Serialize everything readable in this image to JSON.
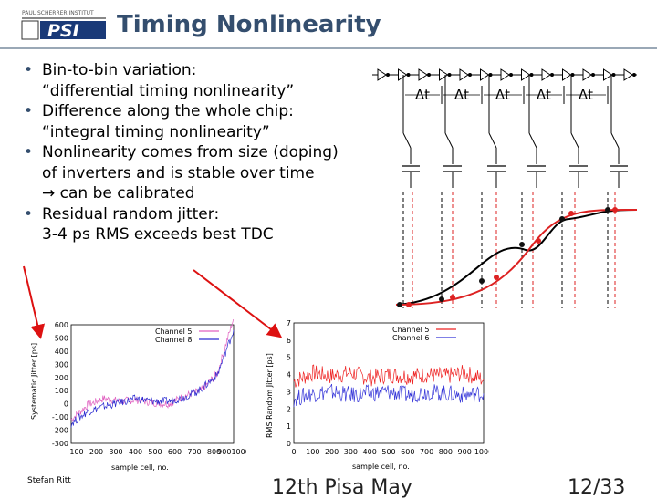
{
  "slide": {
    "logo_text": "PAUL SCHERRER INSTITUT",
    "logo_mark": "PSI",
    "title": "Timing Nonlinearity"
  },
  "bullets": [
    {
      "line1": "Bin-to-bin variation:",
      "line2": "“differential timing nonlinearity”"
    },
    {
      "line1": "Difference along the whole chip:",
      "line2": "“integral timing nonlinearity”"
    },
    {
      "line1": "Nonlinearity comes from size (doping)",
      "line2": "of inverters and is stable over time",
      "line3": "→ can be calibrated"
    },
    {
      "line1": "Residual random jitter:",
      "line2": "3-4 ps RMS exceeds best TDC"
    }
  ],
  "schematic": {
    "delay_labels": [
      "Δt",
      "Δt",
      "Δt",
      "Δt",
      "Δt"
    ],
    "colors": {
      "black_curve": "#000000",
      "red_curve": "#dd2222"
    }
  },
  "chart_data": [
    {
      "type": "line",
      "title": "",
      "xlabel": "sample cell, no.",
      "ylabel": "Systematic Jitter [ps]",
      "xlim": [
        0,
        1000
      ],
      "ylim": [
        -300,
        600
      ],
      "xticks": [
        "100",
        "200",
        "300",
        "400",
        "500",
        "600",
        "700",
        "800",
        "9001000"
      ],
      "yticks": [
        "600",
        "500",
        "400",
        "300",
        "200",
        "100",
        "0",
        "-100",
        "-200",
        "-300"
      ],
      "series": [
        {
          "name": "Channel 5",
          "color": "#e060c0",
          "x": [
            0,
            100,
            200,
            300,
            400,
            500,
            600,
            700,
            800,
            900,
            1000
          ],
          "y": [
            -120,
            -10,
            40,
            20,
            30,
            10,
            0,
            60,
            100,
            230,
            650
          ]
        },
        {
          "name": "Channel 8",
          "color": "#2a2ad0",
          "x": [
            0,
            100,
            200,
            300,
            400,
            500,
            600,
            700,
            800,
            900,
            1000
          ],
          "y": [
            -150,
            -60,
            -20,
            10,
            40,
            20,
            20,
            50,
            110,
            220,
            560
          ]
        }
      ]
    },
    {
      "type": "line",
      "title": "",
      "xlabel": "sample cell, no.",
      "ylabel": "RMS Random Jitter [ps]",
      "xlim": [
        0,
        1000
      ],
      "ylim": [
        0,
        7
      ],
      "xticks": [
        "0",
        "100",
        "200",
        "300",
        "400",
        "500",
        "600",
        "700",
        "800",
        "900",
        "1000"
      ],
      "yticks": [
        "7",
        "6",
        "5",
        "4",
        "3",
        "2",
        "1",
        "0"
      ],
      "series": [
        {
          "name": "Channel 5",
          "color": "#ee2222",
          "x": [
            0,
            100,
            200,
            300,
            400,
            500,
            600,
            700,
            800,
            900,
            1000
          ],
          "y": [
            3.6,
            4.1,
            3.9,
            4.1,
            3.8,
            4.0,
            3.9,
            4.0,
            3.9,
            4.1,
            3.7
          ]
        },
        {
          "name": "Channel 6",
          "color": "#3434d8",
          "x": [
            0,
            100,
            200,
            300,
            400,
            500,
            600,
            700,
            800,
            900,
            1000
          ],
          "y": [
            2.6,
            2.9,
            3.0,
            2.8,
            2.9,
            3.0,
            2.8,
            3.0,
            2.9,
            2.8,
            2.9
          ]
        }
      ]
    }
  ],
  "footer": {
    "author": "Stefan Ritt",
    "event": "12th Pisa May",
    "page": "12/33"
  }
}
